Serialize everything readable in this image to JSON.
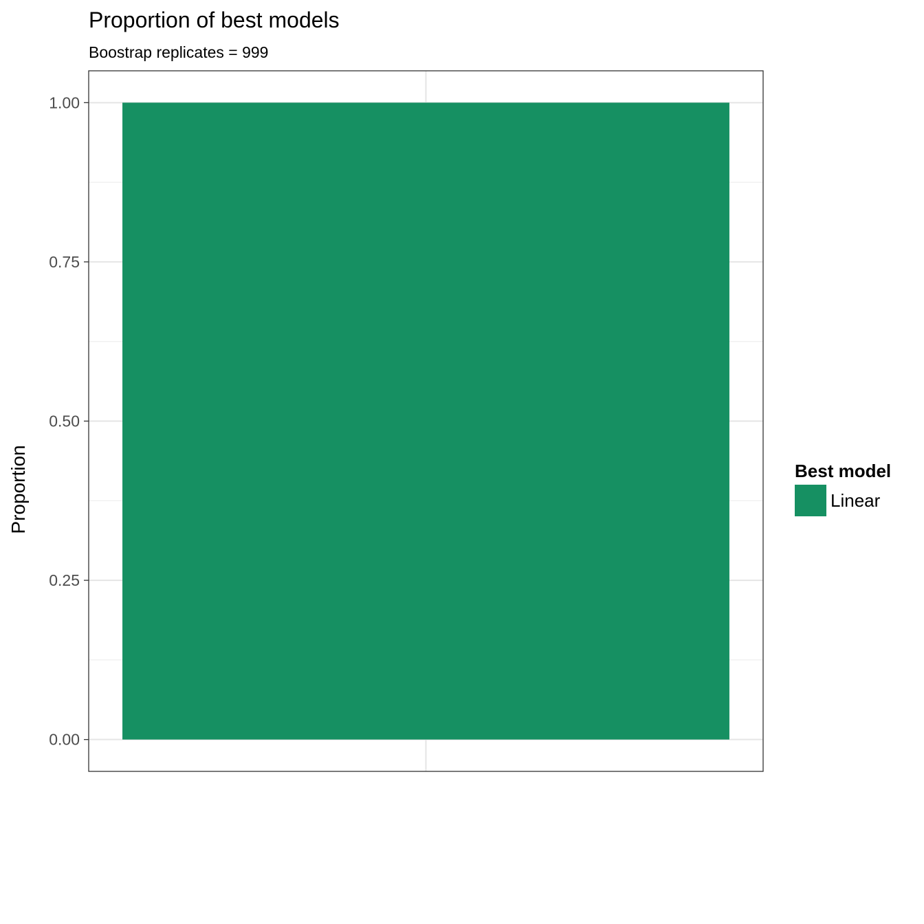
{
  "chart_data": {
    "type": "bar",
    "title": "Proportion of best models",
    "subtitle": "Boostrap replicates = 999",
    "xlabel": "",
    "ylabel": "Proportion",
    "categories": [
      ""
    ],
    "series": [
      {
        "name": "Linear",
        "values": [
          1.0
        ],
        "color": "#169062"
      }
    ],
    "ylim": [
      -0.05,
      1.05
    ],
    "yticks": [
      0.0,
      0.25,
      0.5,
      0.75,
      1.0
    ],
    "ytick_labels": [
      "0.00",
      "0.25",
      "0.50",
      "0.75",
      "1.00"
    ],
    "grid": true,
    "legend": {
      "title": "Best model",
      "position": "right",
      "entries": [
        {
          "label": "Linear",
          "color": "#169062"
        }
      ]
    }
  }
}
